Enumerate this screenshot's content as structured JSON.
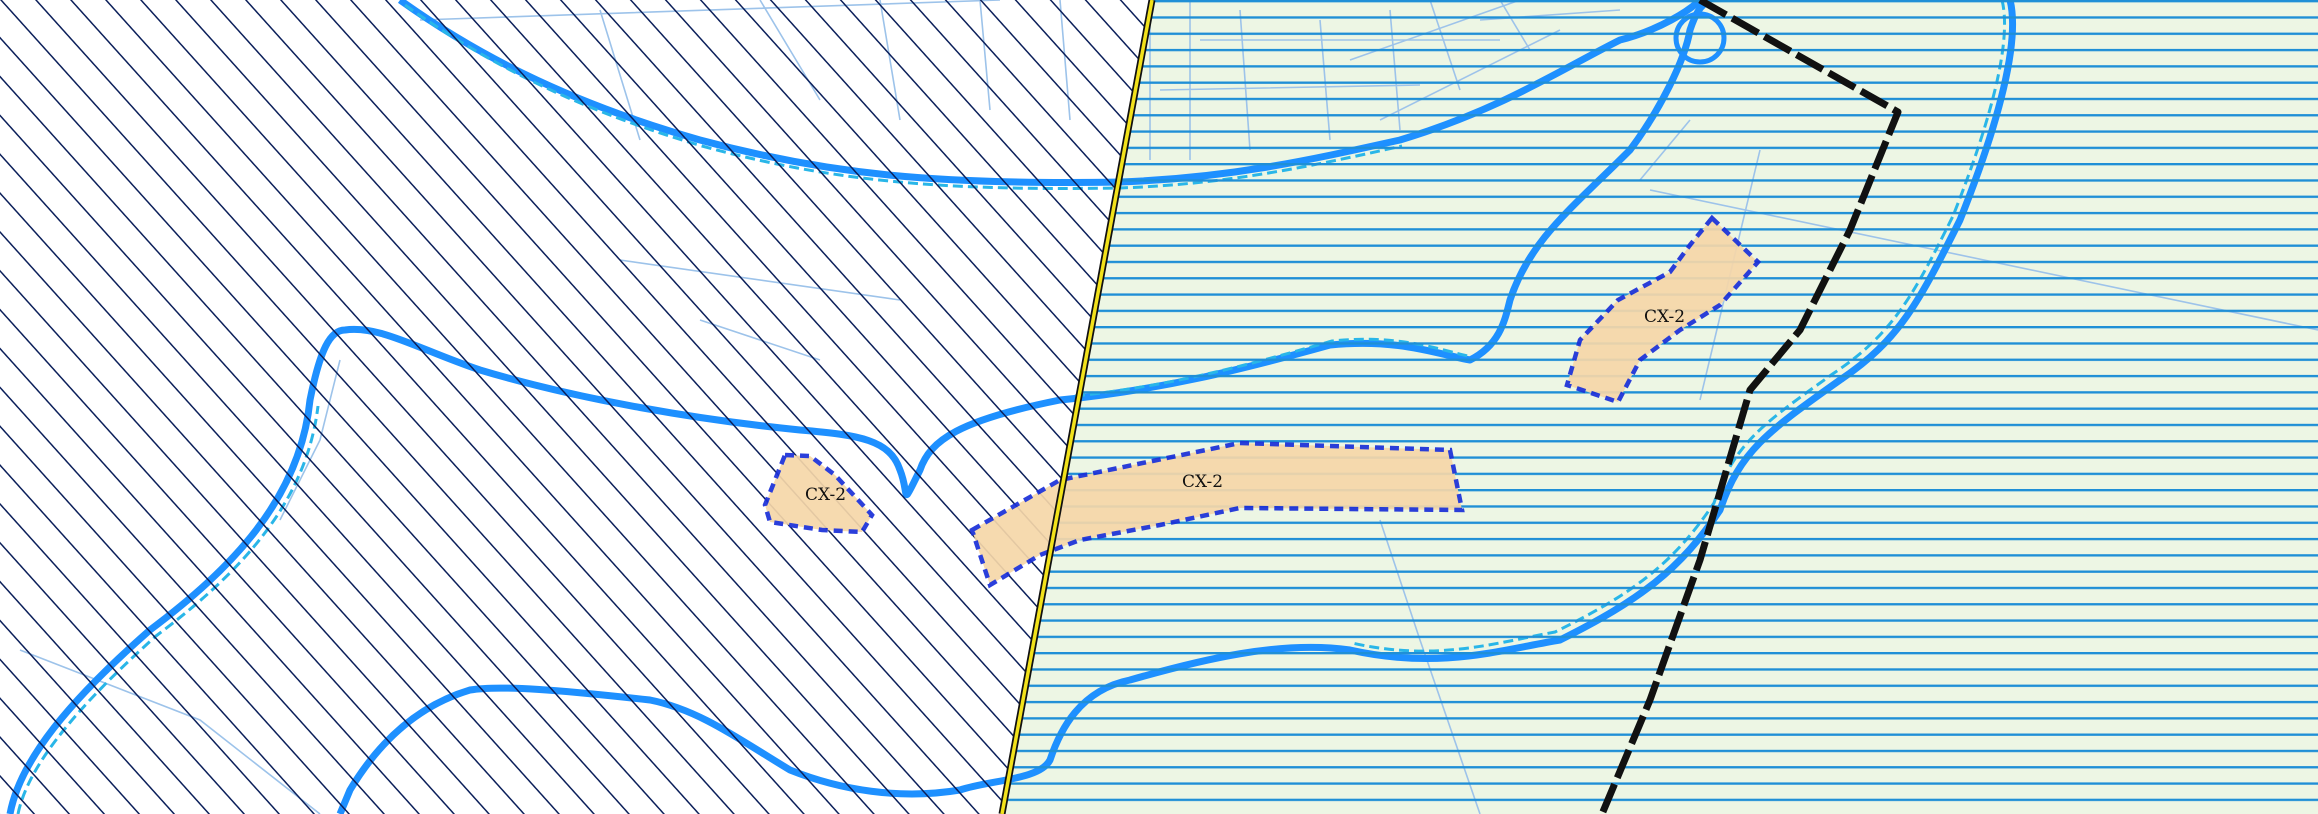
{
  "map": {
    "zone_labels": [
      "CX-2",
      "CX-2",
      "CX-2"
    ],
    "colors": {
      "background_left": "#ffffff",
      "background_right": "#edf6e4",
      "diagonal_hatch": "#0b1f5a",
      "horizontal_hatch": "#1f8fd6",
      "floodplain_outline": "#1e90ff",
      "floodplain_outline_inner": "#29b6e8",
      "parcel_lines": "#9dc3ea",
      "zone_fill": "#f6d7a9",
      "zone_border": "#1a2fd8",
      "boundary_yellow": "#f2e21b",
      "boundary_black": "#111111"
    }
  }
}
